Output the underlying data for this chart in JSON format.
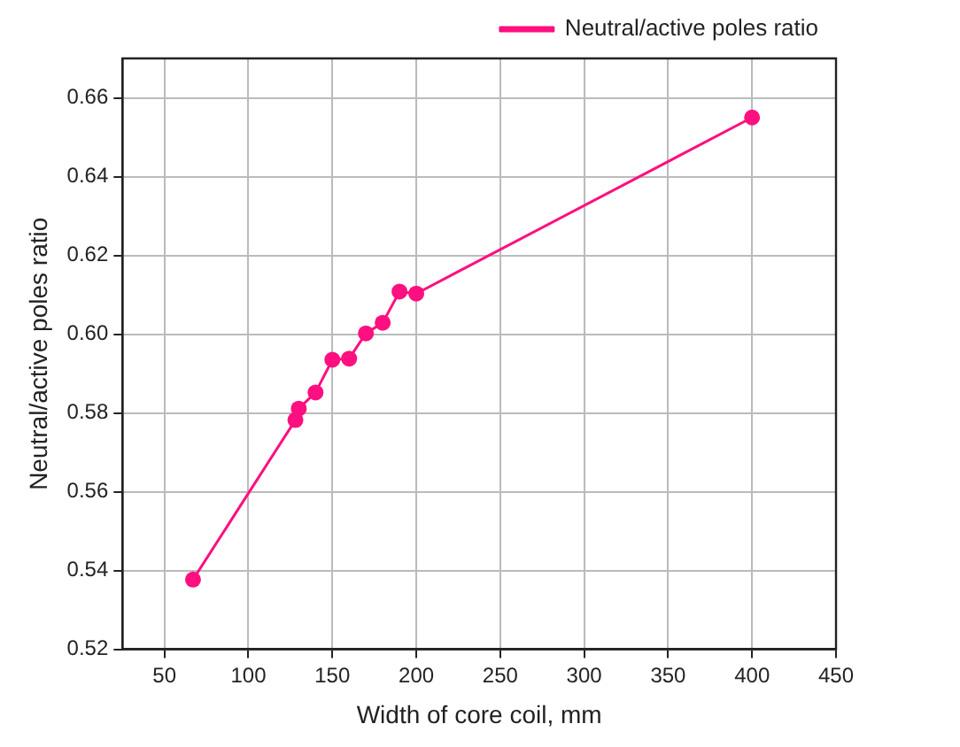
{
  "chart_data": {
    "type": "line",
    "xlabel": "Width of core coil, mm",
    "ylabel": "Neutral/active poles ratio",
    "x": [
      67,
      128,
      130,
      140,
      150,
      160,
      170,
      180,
      190,
      200,
      400
    ],
    "series": [
      {
        "name": "Neutral/active poles ratio",
        "color": "#ff0f7f",
        "values": [
          0.5377,
          0.5782,
          0.5811,
          0.5852,
          0.5935,
          0.5938,
          0.6002,
          0.6029,
          0.6108,
          0.6103,
          0.655
        ]
      }
    ],
    "xlim": [
      25,
      450
    ],
    "xticks": [
      50,
      100,
      150,
      200,
      250,
      300,
      350,
      400,
      450
    ],
    "ylim": [
      0.52,
      0.67
    ],
    "yticks": [
      0.52,
      0.54,
      0.56,
      0.58,
      {
        "value": 0.6,
        "label": "0.60"
      },
      0.62,
      0.64,
      0.66
    ],
    "grid": true,
    "legend": "top right",
    "marker": "circle",
    "line_style": "solid"
  }
}
